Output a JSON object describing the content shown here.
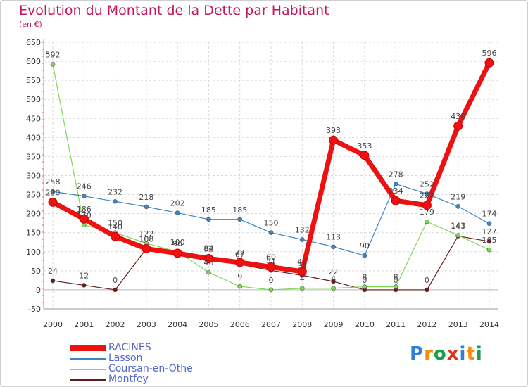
{
  "title": "Evolution du Montant de la Dette par Habitant",
  "subtitle": "(en €)",
  "logo": {
    "text": "Proxiti",
    "colors": [
      "#2f7fd6",
      "#ff8c00",
      "#1a9e4a",
      "#e0301e",
      "#2f7fd6",
      "#ff8c00",
      "#1a9e4a"
    ]
  },
  "chart_data": {
    "type": "line",
    "x": [
      2000,
      2001,
      2002,
      2003,
      2004,
      2005,
      2006,
      2007,
      2008,
      2009,
      2010,
      2011,
      2012,
      2013,
      2014
    ],
    "ylim": [
      -50,
      650
    ],
    "yticks": [
      -50,
      0,
      50,
      100,
      150,
      200,
      250,
      300,
      350,
      400,
      450,
      500,
      550,
      600,
      650
    ],
    "grid": true,
    "legend_position": "bottom-left",
    "series": [
      {
        "name": "RACINES",
        "color": "#ee1111",
        "values": [
          230,
          186,
          140,
          108,
          96,
          82,
          72,
          60,
          48,
          393,
          353,
          234,
          222,
          430,
          596
        ]
      },
      {
        "name": "Lasson",
        "color": "#3d85c6",
        "values": [
          258,
          246,
          232,
          218,
          202,
          185,
          185,
          150,
          132,
          113,
          90,
          278,
          252,
          219,
          174
        ]
      },
      {
        "name": "Coursan-en-Othe",
        "color": "#7ed957",
        "values": [
          592,
          170,
          150,
          122,
          100,
          46,
          9,
          0,
          4,
          4,
          8,
          8,
          179,
          143,
          105
        ]
      },
      {
        "name": "Montfey",
        "color": "#6b1a1a",
        "values": [
          24,
          12,
          0,
          108,
          96,
          84,
          67,
          51,
          38,
          22,
          0,
          0,
          0,
          141,
          127
        ]
      }
    ]
  }
}
